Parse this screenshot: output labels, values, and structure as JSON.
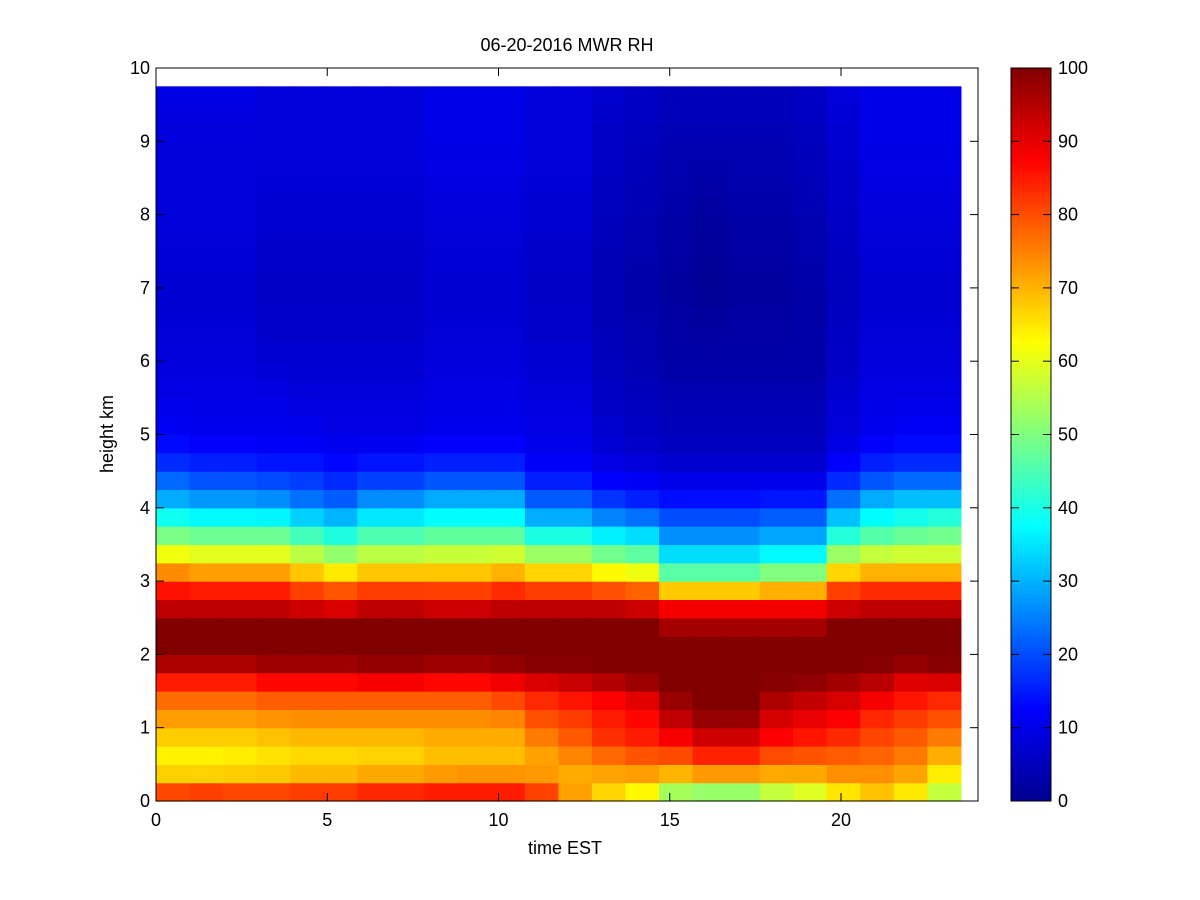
{
  "chart_data": {
    "type": "heatmap",
    "title": "06-20-2016 MWR RH",
    "xlabel": "time EST",
    "ylabel": "height km",
    "xlim": [
      0,
      24
    ],
    "ylim": [
      0,
      10
    ],
    "x_ticks": [
      "0",
      "5",
      "10",
      "15",
      "20"
    ],
    "y_ticks": [
      "0",
      "1",
      "2",
      "3",
      "4",
      "5",
      "6",
      "7",
      "8",
      "9",
      "10"
    ],
    "colorbar": {
      "colormap": "jet",
      "range": [
        0,
        100
      ],
      "ticks": [
        "0",
        "10",
        "20",
        "30",
        "40",
        "50",
        "60",
        "70",
        "80",
        "90",
        "100"
      ]
    },
    "grid": false,
    "time_hours": [
      0,
      1,
      2,
      3,
      4,
      5,
      6,
      7,
      8,
      9,
      10,
      11,
      12,
      13,
      14,
      15,
      16,
      17,
      18,
      19,
      20,
      21,
      22,
      23
    ],
    "data_extent": {
      "time_start": 0,
      "time_end": 23.5,
      "height_top_km": 9.75
    },
    "rh_profile_heights_km": [
      0.0,
      0.1,
      0.3,
      0.5,
      0.8,
      1.0,
      1.3,
      1.5,
      1.7,
      1.9,
      2.1,
      2.4,
      2.7,
      2.9,
      3.2,
      3.5,
      3.8,
      4.1,
      4.4,
      4.7,
      5.0,
      5.5,
      6.0,
      7.0,
      8.0,
      9.0,
      9.75
    ],
    "rh_percent_by_hour": [
      [
        78,
        82,
        70,
        62,
        66,
        70,
        75,
        80,
        88,
        97,
        100,
        100,
        92,
        85,
        70,
        55,
        42,
        30,
        22,
        15,
        12,
        10,
        9,
        8,
        9,
        9,
        10
      ],
      [
        80,
        83,
        70,
        62,
        66,
        70,
        75,
        80,
        88,
        97,
        100,
        100,
        92,
        84,
        68,
        54,
        40,
        28,
        20,
        14,
        11,
        10,
        9,
        8,
        9,
        9,
        10
      ],
      [
        80,
        82,
        70,
        63,
        66,
        70,
        75,
        80,
        88,
        97,
        100,
        100,
        92,
        84,
        68,
        54,
        40,
        28,
        20,
        14,
        11,
        10,
        9,
        8,
        9,
        9,
        10
      ],
      [
        82,
        82,
        70,
        64,
        67,
        71,
        76,
        82,
        90,
        98,
        100,
        100,
        92,
        84,
        68,
        54,
        40,
        27,
        19,
        13,
        11,
        10,
        8,
        7,
        8,
        9,
        9
      ],
      [
        84,
        83,
        72,
        65,
        68,
        72,
        76,
        82,
        90,
        98,
        100,
        100,
        90,
        80,
        64,
        50,
        36,
        24,
        18,
        13,
        11,
        9,
        8,
        7,
        8,
        9,
        9
      ],
      [
        85,
        83,
        72,
        65,
        68,
        72,
        76,
        82,
        90,
        98,
        100,
        100,
        88,
        78,
        60,
        46,
        33,
        22,
        16,
        12,
        10,
        9,
        8,
        7,
        8,
        9,
        9
      ],
      [
        88,
        85,
        74,
        66,
        68,
        72,
        76,
        82,
        92,
        99,
        100,
        100,
        92,
        80,
        64,
        50,
        38,
        27,
        18,
        13,
        10,
        9,
        8,
        7,
        8,
        9,
        9
      ],
      [
        88,
        85,
        74,
        66,
        68,
        72,
        76,
        82,
        92,
        99,
        100,
        100,
        92,
        80,
        64,
        50,
        38,
        27,
        18,
        13,
        10,
        9,
        8,
        7,
        8,
        9,
        9
      ],
      [
        90,
        86,
        75,
        68,
        70,
        72,
        76,
        82,
        90,
        98,
        100,
        100,
        90,
        80,
        64,
        52,
        40,
        30,
        20,
        14,
        11,
        10,
        9,
        8,
        9,
        10,
        10
      ],
      [
        90,
        86,
        76,
        68,
        70,
        72,
        76,
        82,
        90,
        98,
        100,
        100,
        90,
        80,
        64,
        52,
        40,
        30,
        20,
        14,
        11,
        10,
        9,
        8,
        9,
        10,
        10
      ],
      [
        88,
        86,
        76,
        68,
        70,
        72,
        78,
        84,
        92,
        99,
        100,
        100,
        92,
        82,
        66,
        52,
        40,
        30,
        20,
        14,
        11,
        10,
        9,
        8,
        9,
        10,
        10
      ],
      [
        84,
        82,
        74,
        70,
        74,
        78,
        82,
        86,
        94,
        100,
        100,
        100,
        92,
        80,
        62,
        46,
        32,
        22,
        15,
        11,
        10,
        9,
        8,
        7,
        8,
        9,
        9
      ],
      [
        72,
        72,
        70,
        72,
        78,
        80,
        84,
        88,
        96,
        100,
        100,
        100,
        92,
        80,
        62,
        46,
        32,
        22,
        15,
        11,
        10,
        9,
        8,
        7,
        8,
        9,
        9
      ],
      [
        65,
        66,
        70,
        74,
        82,
        84,
        86,
        90,
        98,
        100,
        100,
        100,
        92,
        78,
        58,
        42,
        28,
        18,
        12,
        9,
        8,
        7,
        6,
        5,
        6,
        7,
        8
      ],
      [
        60,
        62,
        70,
        76,
        84,
        86,
        88,
        94,
        99,
        100,
        100,
        100,
        90,
        76,
        56,
        40,
        26,
        16,
        11,
        8,
        7,
        6,
        5,
        4,
        5,
        6,
        7
      ],
      [
        45,
        52,
        66,
        76,
        86,
        92,
        96,
        100,
        100,
        100,
        100,
        96,
        86,
        65,
        40,
        30,
        22,
        14,
        10,
        7,
        6,
        5,
        4,
        3,
        4,
        5,
        6
      ],
      [
        42,
        50,
        68,
        80,
        90,
        96,
        100,
        100,
        100,
        100,
        100,
        96,
        86,
        65,
        40,
        30,
        22,
        14,
        10,
        7,
        6,
        5,
        4,
        2,
        3,
        5,
        6
      ],
      [
        42,
        50,
        68,
        80,
        90,
        96,
        100,
        100,
        100,
        100,
        100,
        96,
        86,
        65,
        40,
        30,
        22,
        14,
        10,
        7,
        6,
        5,
        4,
        3,
        4,
        5,
        6
      ],
      [
        50,
        55,
        68,
        76,
        86,
        90,
        94,
        98,
        100,
        100,
        100,
        96,
        86,
        68,
        44,
        32,
        24,
        15,
        10,
        7,
        6,
        5,
        4,
        3,
        4,
        5,
        6
      ],
      [
        55,
        58,
        68,
        76,
        84,
        88,
        92,
        96,
        100,
        100,
        100,
        96,
        86,
        68,
        44,
        32,
        24,
        15,
        10,
        7,
        6,
        5,
        4,
        4,
        5,
        6,
        7
      ],
      [
        62,
        64,
        72,
        76,
        82,
        86,
        90,
        94,
        98,
        100,
        100,
        100,
        90,
        80,
        62,
        46,
        34,
        24,
        16,
        11,
        9,
        8,
        7,
        6,
        7,
        8,
        9
      ],
      [
        66,
        68,
        72,
        76,
        80,
        82,
        86,
        92,
        96,
        100,
        100,
        100,
        92,
        82,
        66,
        50,
        40,
        30,
        20,
        14,
        11,
        10,
        9,
        8,
        9,
        10,
        10
      ],
      [
        60,
        64,
        70,
        74,
        78,
        80,
        84,
        88,
        92,
        99,
        100,
        100,
        92,
        82,
        66,
        52,
        42,
        32,
        22,
        15,
        12,
        10,
        9,
        8,
        9,
        10,
        10
      ],
      [
        50,
        56,
        62,
        68,
        74,
        78,
        82,
        86,
        94,
        100,
        100,
        100,
        92,
        82,
        66,
        52,
        44,
        32,
        22,
        15,
        12,
        10,
        9,
        8,
        9,
        10,
        10
      ]
    ]
  }
}
